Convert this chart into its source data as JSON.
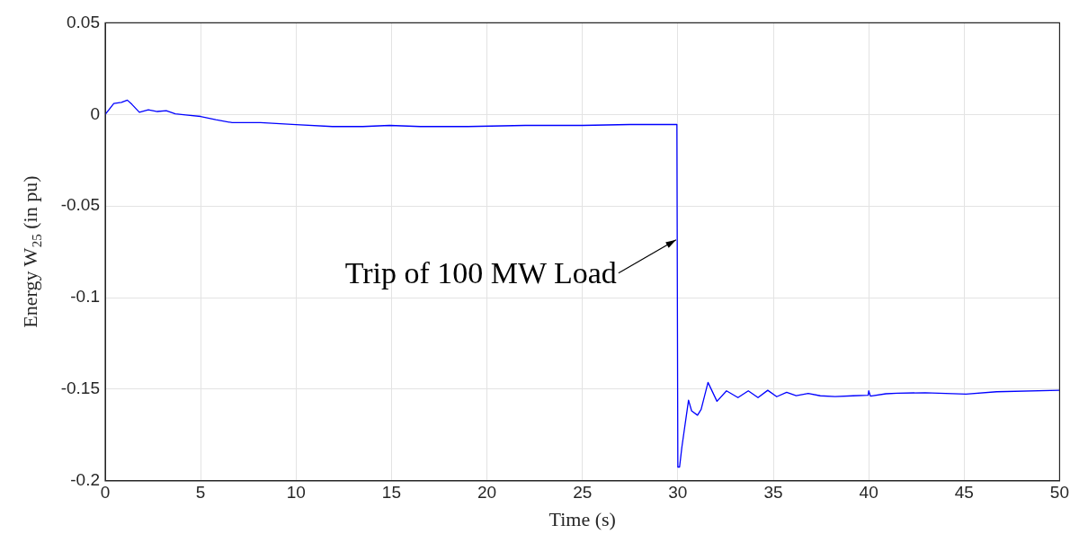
{
  "chart_data": {
    "type": "line",
    "xlabel": "Time (s)",
    "ylabel": "Energy W$_{25}$ (in pu)",
    "xlim": [
      0,
      50
    ],
    "ylim": [
      -0.2,
      0.05
    ],
    "xticks": [
      0,
      5,
      10,
      15,
      20,
      25,
      30,
      35,
      40,
      45,
      50
    ],
    "yticks": [
      -0.2,
      -0.15,
      -0.1,
      -0.05,
      0,
      0.05
    ],
    "grid": true,
    "legend": false,
    "annotations": [
      {
        "text": "Trip of 100 MW Load",
        "x": 30,
        "y": -0.068
      }
    ],
    "series": [
      {
        "color": "#0000ff",
        "x": [
          0,
          0.45,
          0.85,
          1.16,
          1.4,
          1.79,
          2.26,
          2.73,
          3.2,
          3.67,
          4.22,
          5.0,
          5.79,
          6.65,
          8.14,
          10.0,
          11.9,
          13.5,
          14.9,
          16.5,
          19,
          22,
          25,
          27.5,
          29.95,
          30.0,
          30.09,
          30.21,
          30.56,
          30.72,
          31.03,
          31.22,
          31.58,
          32.05,
          32.55,
          33.15,
          33.69,
          34.2,
          34.71,
          35.18,
          35.7,
          36.2,
          36.83,
          37.46,
          38.24,
          39.18,
          39.97,
          40.0,
          40.09,
          40.9,
          41.5,
          42.95,
          45.1,
          46.7,
          50
        ],
        "values": [
          0,
          0.006,
          0.0066,
          0.0078,
          0.0055,
          0.0012,
          0.0025,
          0.0016,
          0.002,
          0.0003,
          -0.0003,
          -0.0011,
          -0.0029,
          -0.0045,
          -0.0045,
          -0.0056,
          -0.0066,
          -0.0066,
          -0.006,
          -0.0066,
          -0.0066,
          -0.006,
          -0.006,
          -0.0055,
          -0.0055,
          -0.1925,
          -0.1925,
          -0.1817,
          -0.156,
          -0.1618,
          -0.1642,
          -0.161,
          -0.1463,
          -0.1566,
          -0.1509,
          -0.1546,
          -0.1509,
          -0.1546,
          -0.1506,
          -0.1541,
          -0.1517,
          -0.1535,
          -0.1523,
          -0.1536,
          -0.154,
          -0.1536,
          -0.1533,
          -0.1509,
          -0.1538,
          -0.1525,
          -0.1522,
          -0.1519,
          -0.1527,
          -0.1514,
          -0.1506
        ]
      }
    ]
  }
}
